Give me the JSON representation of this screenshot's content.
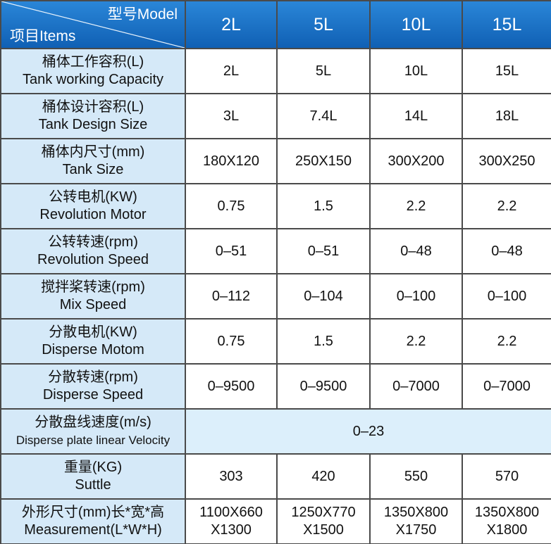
{
  "header": {
    "model_label": "型号Model",
    "items_label": "项目Items",
    "models": [
      "2L",
      "5L",
      "10L",
      "15L"
    ]
  },
  "rows": [
    {
      "label": [
        "桶体工作容积(L)",
        "Tank working Capacity"
      ],
      "values": [
        "2L",
        "5L",
        "10L",
        "15L"
      ]
    },
    {
      "label": [
        "桶体设计容积(L)",
        "Tank Design Size"
      ],
      "values": [
        "3L",
        "7.4L",
        "14L",
        "18L"
      ]
    },
    {
      "label": [
        "桶体内尺寸(mm)",
        "Tank Size"
      ],
      "values": [
        "180X120",
        "250X150",
        "300X200",
        "300X250"
      ]
    },
    {
      "label": [
        "公转电机(KW)",
        "Revolution Motor"
      ],
      "values": [
        "0.75",
        "1.5",
        "2.2",
        "2.2"
      ]
    },
    {
      "label": [
        "公转转速(rpm)",
        "Revolution Speed"
      ],
      "values": [
        "0–51",
        "0–51",
        "0–48",
        "0–48"
      ]
    },
    {
      "label": [
        "搅拌桨转速(rpm)",
        "Mix Speed"
      ],
      "values": [
        "0–112",
        "0–104",
        "0–100",
        "0–100"
      ]
    },
    {
      "label": [
        "分散电机(KW)",
        "Disperse Motom"
      ],
      "values": [
        "0.75",
        "1.5",
        "2.2",
        "2.2"
      ]
    },
    {
      "label": [
        "分散转速(rpm)",
        "Disperse Speed"
      ],
      "values": [
        "0–9500",
        "0–9500",
        "0–7000",
        "0–7000"
      ]
    },
    {
      "label": [
        "分散盘线速度(m/s)",
        "Disperse plate linear Velocity"
      ],
      "values": [
        "0–23"
      ]
    },
    {
      "label": [
        "重量(KG)",
        "Suttle"
      ],
      "values": [
        "303",
        "420",
        "550",
        "570"
      ]
    },
    {
      "label": [
        "外形尺寸(mm)长*宽*高",
        "Measurement(L*W*H)"
      ],
      "values": [
        [
          "1100X660",
          "X1300"
        ],
        [
          "1250X770",
          "X1500"
        ],
        [
          "1350X800",
          "X1750"
        ],
        [
          "1350X800",
          "X1800"
        ]
      ]
    }
  ]
}
